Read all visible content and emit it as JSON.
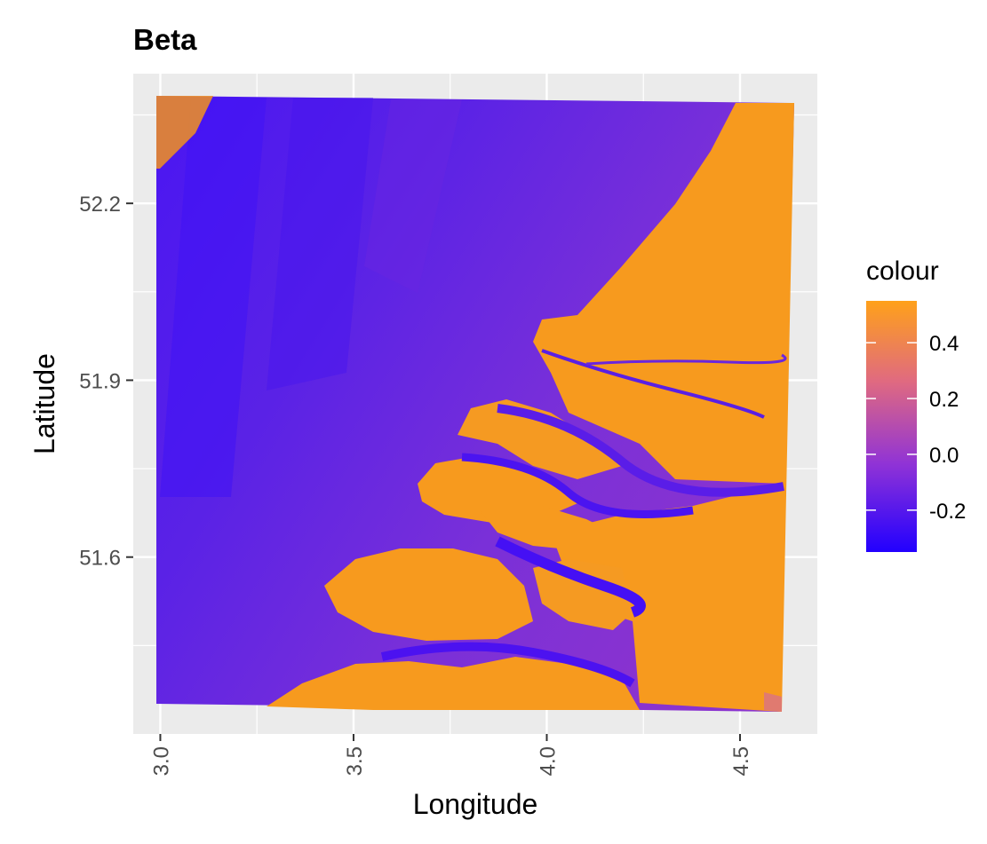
{
  "chart_data": {
    "type": "heatmap",
    "title": "Beta",
    "xlabel": "Longitude",
    "ylabel": "Latitude",
    "xlim": [
      2.93,
      4.7
    ],
    "ylim": [
      51.3,
      52.42
    ],
    "x_ticks": [
      3.0,
      3.5,
      4.0,
      4.5
    ],
    "x_tick_labels": [
      "3.0",
      "3.5",
      "4.0",
      "4.5"
    ],
    "y_ticks": [
      51.6,
      51.9,
      52.2
    ],
    "y_tick_labels": [
      "51.6",
      "51.9",
      "52.2"
    ],
    "grid": true,
    "legend": {
      "title": "colour",
      "placement": "right",
      "range": [
        -0.35,
        0.55
      ],
      "ticks": [
        -0.2,
        0.0,
        0.2,
        0.4
      ],
      "tick_labels": [
        "-0.2",
        "0.0",
        "0.2",
        "0.4"
      ],
      "colors": [
        "#2200ff",
        "#9033d6",
        "#e06a80",
        "#ffa11a"
      ]
    },
    "colors": {
      "panel": "#ebebeb",
      "grid_major": "#ffffff",
      "water_low": "#4a17ee",
      "water_mid": "#7a2ddc",
      "land": "#f79a1e"
    }
  }
}
